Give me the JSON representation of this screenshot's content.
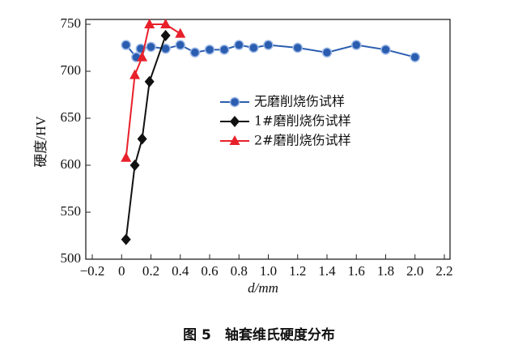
{
  "chart_data": {
    "type": "line",
    "caption": "图 5　轴套维氏硬度分布",
    "xlabel": "d/mm",
    "ylabel": "硬度/HV",
    "xlim": [
      -0.2,
      2.2
    ],
    "xticks": [
      {
        "value": -0.2,
        "label": "−0.2"
      },
      0,
      0.2,
      0.4,
      0.6,
      0.8,
      {
        "value": 1,
        "label": "1.0"
      },
      1.2,
      1.4,
      1.6,
      1.8,
      {
        "value": 2,
        "label": "2.0"
      },
      2.2
    ],
    "ylim": [
      500,
      750
    ],
    "yticks": [
      500,
      550,
      600,
      650,
      700,
      750
    ],
    "legend": "right",
    "series": [
      {
        "name": "无磨削烧伤试样",
        "color": "#2a5db0",
        "marker": "circle",
        "x": [
          0.03,
          0.1,
          0.13,
          0.2,
          0.3,
          0.4,
          0.5,
          0.6,
          0.7,
          0.8,
          0.9,
          1.0,
          1.2,
          1.4,
          1.6,
          1.8,
          2.0
        ],
        "values": [
          728,
          715,
          724,
          726,
          724,
          728,
          720,
          723,
          723,
          728,
          725,
          728,
          725,
          720,
          728,
          723,
          715
        ]
      },
      {
        "name": "1#磨削烧伤试样",
        "color": "#111111",
        "marker": "diamond",
        "x": [
          0.03,
          0.09,
          0.14,
          0.19,
          0.3
        ],
        "values": [
          521,
          600,
          628,
          689,
          738
        ]
      },
      {
        "name": "2#磨削烧伤试样",
        "color": "#e8202a",
        "marker": "triangle",
        "x": [
          0.03,
          0.09,
          0.14,
          0.19,
          0.3,
          0.4
        ],
        "values": [
          608,
          696,
          715,
          750,
          750,
          740
        ]
      }
    ]
  }
}
